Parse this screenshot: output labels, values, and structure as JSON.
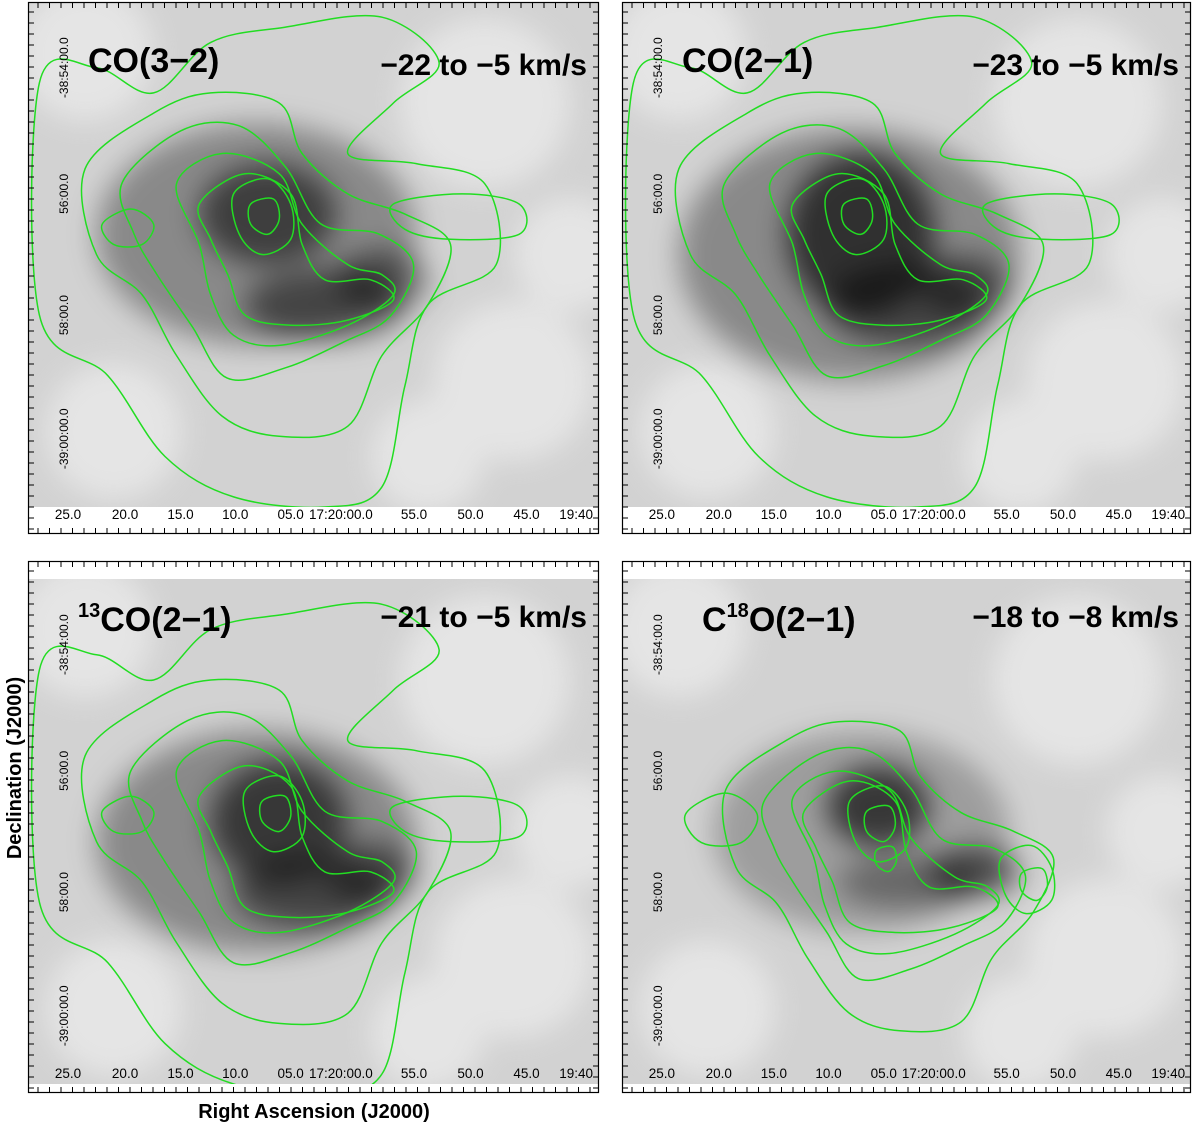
{
  "figure": {
    "ylabel": "Declination (J2000)",
    "xlabel": "Right Ascension (J2000)"
  },
  "chart_data": [
    {
      "type": "heatmap",
      "panel": "top-left",
      "label": "CO(3−2)",
      "velocity_range": "−22 to −5 km/s",
      "xticks": [
        "25.0",
        "20.0",
        "15.0",
        "10.0",
        "05.0",
        "17:20:00.0",
        "55.0",
        "50.0",
        "45.0",
        "19:40"
      ],
      "yticks": [
        "-38:54:00.0",
        "56:00.0",
        "58:00.0",
        "-39:00:00.0"
      ],
      "colormap": "grayscale",
      "contour_color": "#22dd22",
      "contour_levels": 9
    },
    {
      "type": "heatmap",
      "panel": "top-right",
      "label": "CO(2−1)",
      "velocity_range": "−23 to −5 km/s",
      "xticks": [
        "25.0",
        "20.0",
        "15.0",
        "10.0",
        "05.0",
        "17:20:00.0",
        "55.0",
        "50.0",
        "45.0",
        "19:40"
      ],
      "yticks": [
        "-38:54:00.0",
        "56:00.0",
        "58:00.0",
        "-39:00:00.0"
      ],
      "colormap": "grayscale",
      "contour_color": "#22dd22",
      "contour_levels": 8
    },
    {
      "type": "heatmap",
      "panel": "bottom-left",
      "label_sup": "13",
      "label": "CO(2−1)",
      "velocity_range": "−21 to −5 km/s",
      "xticks": [
        "25.0",
        "20.0",
        "15.0",
        "10.0",
        "05.0",
        "17:20:00.0",
        "55.0",
        "50.0",
        "45.0",
        "19:40"
      ],
      "yticks": [
        "-38:54:00.0",
        "56:00.0",
        "58:00.0",
        "-39:00:00.0"
      ],
      "colormap": "grayscale",
      "contour_color": "#22dd22",
      "contour_levels": 9
    },
    {
      "type": "heatmap",
      "panel": "bottom-right",
      "label_pre": "C",
      "label_sup": "18",
      "label": "O(2−1)",
      "velocity_range": "−18 to −8 km/s",
      "xticks": [
        "25.0",
        "20.0",
        "15.0",
        "10.0",
        "05.0",
        "17:20:00.0",
        "55.0",
        "50.0",
        "45.0",
        "19:40"
      ],
      "yticks": [
        "-38:54:00.0",
        "56:00.0",
        "58:00.0",
        "-39:00:00.0"
      ],
      "colormap": "grayscale",
      "contour_color": "#22dd22",
      "contour_levels": 11
    }
  ]
}
